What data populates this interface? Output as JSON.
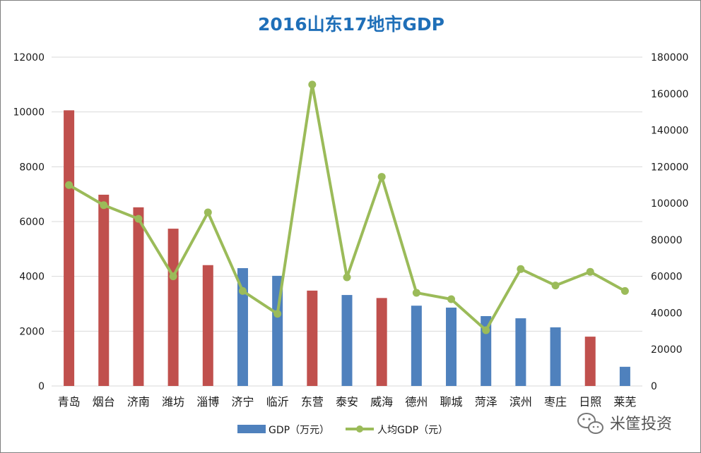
{
  "chart_data": {
    "type": "bar",
    "title": "2016山东17地市GDP",
    "categories": [
      "青岛",
      "烟台",
      "济南",
      "潍坊",
      "淄博",
      "济宁",
      "临沂",
      "东营",
      "泰安",
      "威海",
      "德州",
      "聊城",
      "菏泽",
      "滨州",
      "枣庄",
      "日照",
      "莱芜"
    ],
    "series": [
      {
        "name": "GDP（万元）",
        "type": "bar",
        "axis": "left",
        "values": [
          10060,
          6980,
          6520,
          5740,
          4410,
          4300,
          4020,
          3480,
          3320,
          3210,
          2930,
          2860,
          2550,
          2470,
          2140,
          1800,
          700
        ],
        "point_colors": [
          "#c0504d",
          "#c0504d",
          "#c0504d",
          "#c0504d",
          "#c0504d",
          "#4f81bd",
          "#4f81bd",
          "#c0504d",
          "#4f81bd",
          "#c0504d",
          "#4f81bd",
          "#4f81bd",
          "#4f81bd",
          "#4f81bd",
          "#4f81bd",
          "#c0504d",
          "#4f81bd"
        ]
      },
      {
        "name": "人均GDP（元）",
        "type": "line",
        "axis": "right",
        "values": [
          110000,
          99000,
          91500,
          60000,
          95000,
          52000,
          39500,
          165000,
          59500,
          114500,
          51000,
          47500,
          30500,
          64000,
          55000,
          62500,
          52000
        ]
      }
    ],
    "left_axis": {
      "min": 0,
      "max": 12000,
      "ticks": [
        0,
        2000,
        4000,
        6000,
        8000,
        10000,
        12000
      ]
    },
    "right_axis": {
      "min": 0,
      "max": 180000,
      "ticks": [
        0,
        20000,
        40000,
        60000,
        80000,
        100000,
        120000,
        140000,
        160000,
        180000
      ]
    },
    "grid": true,
    "legend_position": "bottom",
    "colors": {
      "bar": "#4f81bd",
      "bar_highlight": "#c0504d",
      "line": "#9bbb59",
      "title": "#1f6fb8",
      "grid": "#d9d9d9"
    }
  },
  "watermark": {
    "icon": "wechat-icon",
    "text": "米筐投资"
  }
}
